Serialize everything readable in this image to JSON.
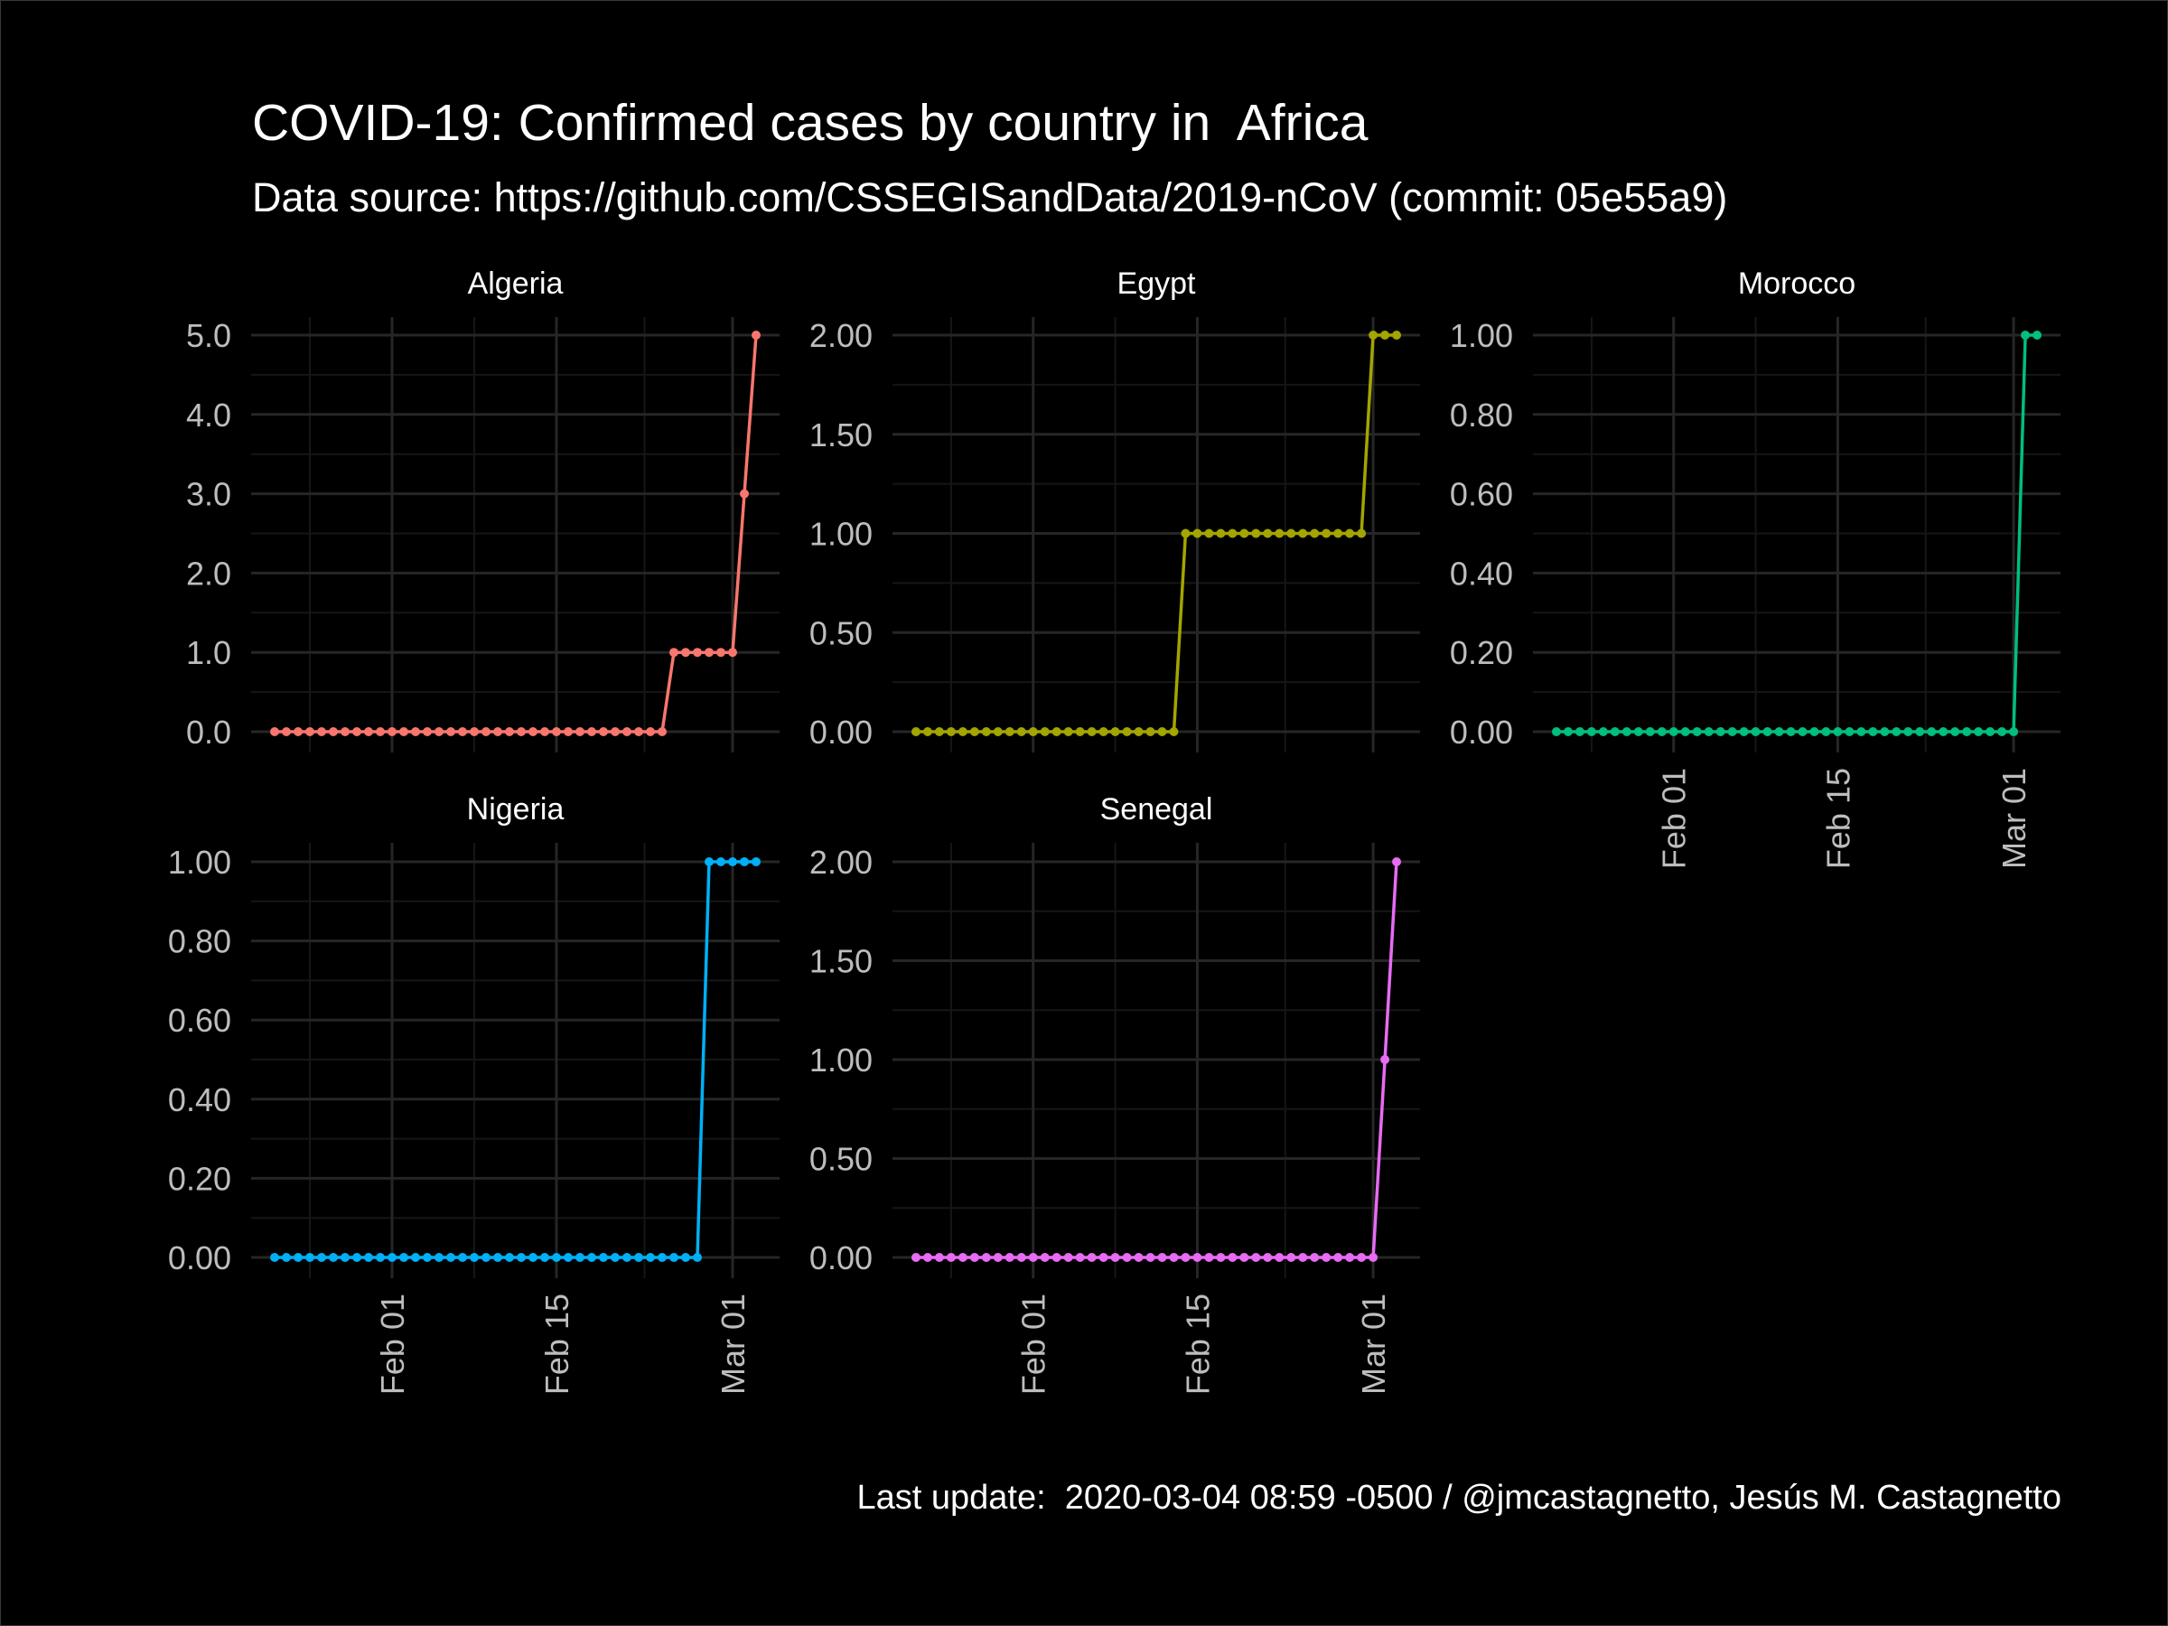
{
  "title": "COVID-19: Confirmed cases by country in  Africa",
  "subtitle": "Data source: https://github.com/CSSEGISandData/2019-nCoV (commit: 05e55a9)",
  "caption": "Last update:  2020-03-04 08:59 -0500 / @jmcastagnetto, Jesús M. Castagnetto",
  "colors": {
    "background": "#000000",
    "grid_major": "#262626",
    "grid_minor": "#161616",
    "tick_text": "#bdbdbd",
    "text": "#ffffff"
  },
  "chart_data": {
    "type": "line",
    "facets": "by country",
    "x_start": "2020-01-22",
    "x_end": "2020-03-03",
    "xlim": [
      "2020-01-20",
      "2020-03-05"
    ],
    "x_ticks": [
      {
        "label": "Feb 01",
        "date": "2020-02-01"
      },
      {
        "label": "Feb 15",
        "date": "2020-02-15"
      },
      {
        "label": "Mar 01",
        "date": "2020-03-01"
      }
    ],
    "series": [
      {
        "name": "Algeria",
        "color": "#F8766D",
        "ylim": [
          0,
          5
        ],
        "y_ticks": [
          "0.0",
          "1.0",
          "2.0",
          "3.0",
          "4.0",
          "5.0"
        ],
        "changes": [
          {
            "date": "2020-01-22",
            "value": 0
          },
          {
            "date": "2020-02-25",
            "value": 1
          },
          {
            "date": "2020-03-02",
            "value": 3
          },
          {
            "date": "2020-03-03",
            "value": 5
          }
        ]
      },
      {
        "name": "Egypt",
        "color": "#A3A500",
        "ylim": [
          0,
          2
        ],
        "y_ticks": [
          "0.00",
          "0.50",
          "1.00",
          "1.50",
          "2.00"
        ],
        "changes": [
          {
            "date": "2020-01-22",
            "value": 0
          },
          {
            "date": "2020-02-14",
            "value": 1
          },
          {
            "date": "2020-03-01",
            "value": 2
          }
        ]
      },
      {
        "name": "Morocco",
        "color": "#00BF7D",
        "ylim": [
          0,
          1
        ],
        "y_ticks": [
          "0.00",
          "0.20",
          "0.40",
          "0.60",
          "0.80",
          "1.00"
        ],
        "changes": [
          {
            "date": "2020-01-22",
            "value": 0
          },
          {
            "date": "2020-03-02",
            "value": 1
          }
        ]
      },
      {
        "name": "Nigeria",
        "color": "#00B0F6",
        "ylim": [
          0,
          1
        ],
        "y_ticks": [
          "0.00",
          "0.20",
          "0.40",
          "0.60",
          "0.80",
          "1.00"
        ],
        "changes": [
          {
            "date": "2020-01-22",
            "value": 0
          },
          {
            "date": "2020-02-28",
            "value": 1
          }
        ]
      },
      {
        "name": "Senegal",
        "color": "#E76BF3",
        "ylim": [
          0,
          2
        ],
        "y_ticks": [
          "0.00",
          "0.50",
          "1.00",
          "1.50",
          "2.00"
        ],
        "changes": [
          {
            "date": "2020-01-22",
            "value": 0
          },
          {
            "date": "2020-03-02",
            "value": 1
          },
          {
            "date": "2020-03-03",
            "value": 2
          }
        ]
      }
    ]
  }
}
